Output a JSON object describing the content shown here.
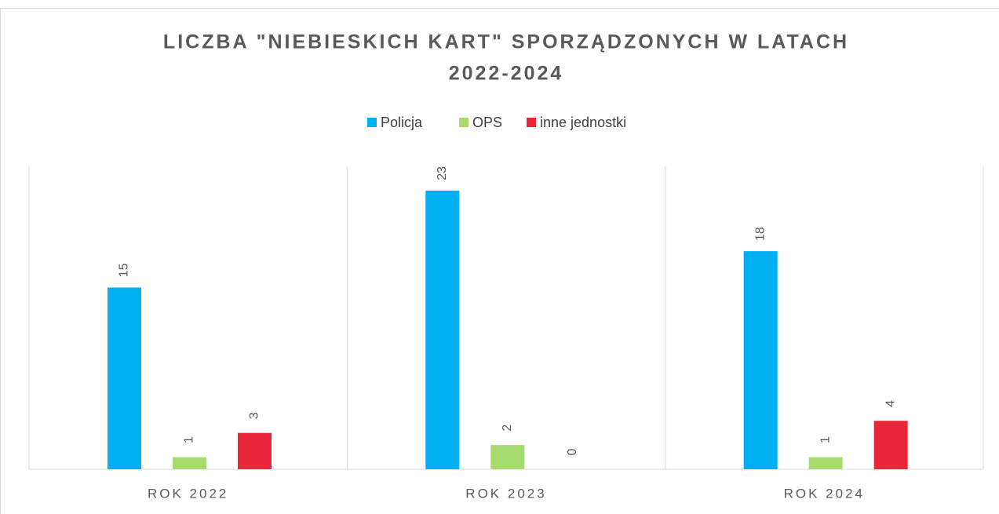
{
  "chart_data": {
    "type": "bar",
    "title": "LICZBA \"NIEBIESKICH KART\" SPORZĄDZONYCH W LATACH",
    "subtitle": "2022-2024",
    "categories": [
      "ROK 2022",
      "ROK 2023",
      "ROK 2024"
    ],
    "series": [
      {
        "name": "Policja",
        "color": "#00b0f0",
        "values": [
          15,
          23,
          18
        ]
      },
      {
        "name": "OPS",
        "color": "#a6dc6e",
        "values": [
          1,
          2,
          1
        ]
      },
      {
        "name": "inne jednostki",
        "color": "#e8283a",
        "values": [
          3,
          0,
          4
        ]
      }
    ],
    "ylim": [
      0,
      25
    ],
    "legend": "top"
  }
}
